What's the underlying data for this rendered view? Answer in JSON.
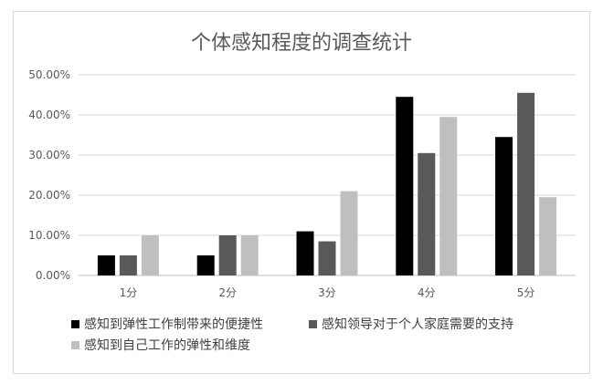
{
  "chart_data": {
    "type": "bar",
    "title": "个体感知程度的调查统计",
    "categories": [
      "1分",
      "2分",
      "3分",
      "4分",
      "5分"
    ],
    "ylim": [
      0,
      50
    ],
    "yticks": [
      "0.00%",
      "10.00%",
      "20.00%",
      "30.00%",
      "40.00%",
      "50.00%"
    ],
    "grid": true,
    "legend_position": "bottom",
    "series": [
      {
        "name": "感知到弹性工作制带来的便捷性",
        "color": "#000000",
        "values": [
          5.0,
          5.0,
          11.0,
          44.5,
          34.5
        ]
      },
      {
        "name": "感知领导对于个人家庭需要的支持",
        "color": "#595959",
        "values": [
          5.0,
          10.0,
          8.5,
          30.5,
          45.5
        ]
      },
      {
        "name": "感知到自己工作的弹性和维度",
        "color": "#bfbfbf",
        "values": [
          10.0,
          10.0,
          21.0,
          39.5,
          19.5
        ]
      }
    ]
  }
}
